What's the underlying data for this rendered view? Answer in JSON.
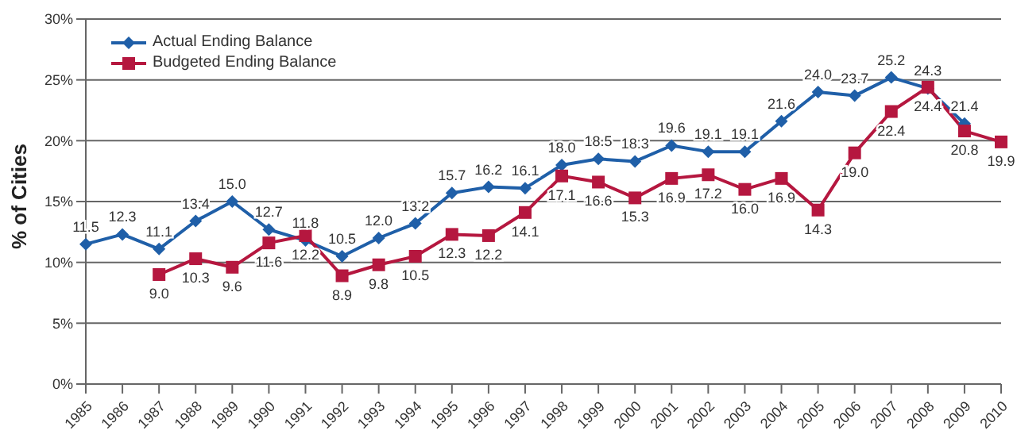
{
  "chart_data": {
    "type": "line",
    "ylabel": "% of Cities",
    "categories": [
      "1985",
      "1986",
      "1987",
      "1988",
      "1989",
      "1990",
      "1991",
      "1992",
      "1993",
      "1994",
      "1995",
      "1996",
      "1997",
      "1998",
      "1999",
      "2000",
      "2001",
      "2002",
      "2003",
      "2004",
      "2005",
      "2006",
      "2007",
      "2008",
      "2009",
      "2010"
    ],
    "series": [
      {
        "name": "Actual Ending Balance",
        "color": "#1f5fa8",
        "marker": "diamond",
        "values": [
          11.5,
          12.3,
          11.1,
          13.4,
          15.0,
          12.7,
          11.8,
          10.5,
          12.0,
          13.2,
          15.7,
          16.2,
          16.1,
          18.0,
          18.5,
          18.3,
          19.6,
          19.1,
          19.1,
          21.6,
          24.0,
          23.7,
          25.2,
          24.3,
          21.4,
          null
        ],
        "value_labels": [
          "11.5",
          "12.3",
          "11.1",
          "13.4",
          "15.0",
          "12.7",
          "11.8",
          "10.5",
          "12.0",
          "13.2",
          "15.7",
          "16.2",
          "16.1",
          "18.0",
          "18.5",
          "18.3",
          "19.6",
          "19.1",
          "19.1",
          "21.6",
          "24.0",
          "23.7",
          "25.2",
          "24.3",
          "21.4",
          null
        ]
      },
      {
        "name": "Budgeted Ending Balance",
        "color": "#b5173f",
        "marker": "square",
        "values": [
          null,
          null,
          9.0,
          10.3,
          9.6,
          11.6,
          12.2,
          8.9,
          9.8,
          10.5,
          12.3,
          12.2,
          14.1,
          17.1,
          16.6,
          15.3,
          16.9,
          17.2,
          16.0,
          16.9,
          14.3,
          19.0,
          22.4,
          24.4,
          20.8,
          19.9
        ],
        "value_labels": [
          null,
          null,
          "9.0",
          "10.3",
          "9.6",
          "11.6",
          "12.2",
          "8.9",
          "9.8",
          "10.5",
          "12.3",
          "12.2",
          "14.1",
          "17.1",
          "16.6",
          "15.3",
          "16.9",
          "17.2",
          "16.0",
          "16.9",
          "14.3",
          "19.0",
          "22.4",
          "24.4",
          "20.8",
          "19.9"
        ]
      }
    ],
    "ylim": [
      0,
      30
    ],
    "yticks": [
      {
        "value": 0,
        "label": "0%"
      },
      {
        "value": 5,
        "label": "5%"
      },
      {
        "value": 10,
        "label": "10%"
      },
      {
        "value": 15,
        "label": "15%"
      },
      {
        "value": 20,
        "label": "20%"
      },
      {
        "value": 25,
        "label": "25%"
      },
      {
        "value": 30,
        "label": "30%"
      }
    ],
    "grid": "y",
    "legend": "top left",
    "line_style": "solid"
  }
}
